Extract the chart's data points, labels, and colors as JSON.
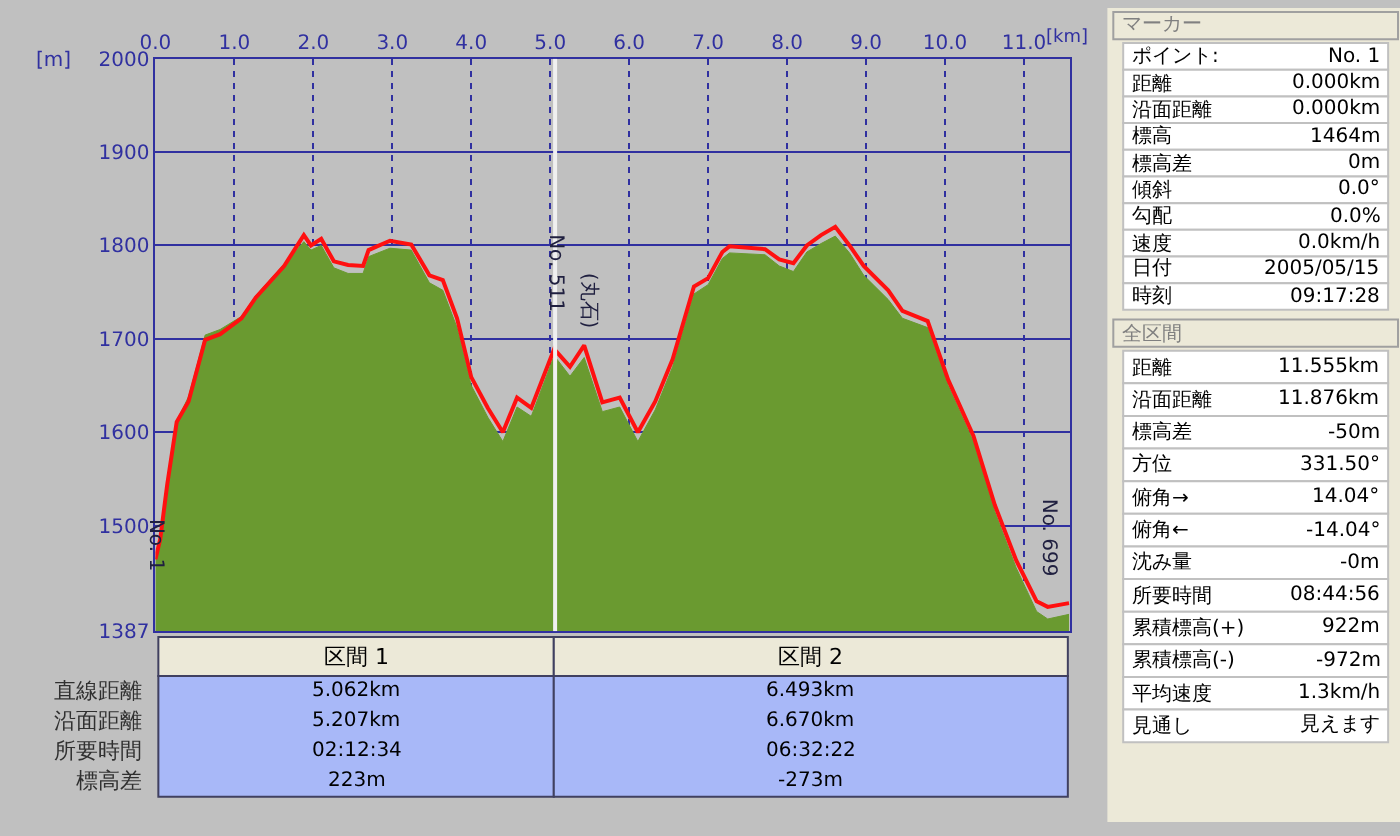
{
  "chart_data": [
    {
      "type": "area",
      "xlabel": "[km]",
      "ylabel": "[m]",
      "xlim": [
        0,
        11.58
      ],
      "ylim": [
        1387,
        2000
      ],
      "xticks": [
        {
          "value": 0,
          "label": "0.0"
        },
        {
          "value": 1,
          "label": "1.0"
        },
        {
          "value": 2,
          "label": "2.0"
        },
        {
          "value": 3,
          "label": "3.0"
        },
        {
          "value": 4,
          "label": "4.0"
        },
        {
          "value": 5,
          "label": "5.0"
        },
        {
          "value": 6,
          "label": "6.0"
        },
        {
          "value": 7,
          "label": "7.0"
        },
        {
          "value": 8,
          "label": "8.0"
        },
        {
          "value": 9,
          "label": "9.0"
        },
        {
          "value": 10,
          "label": "10.0"
        },
        {
          "value": 11,
          "label": "11.0"
        }
      ],
      "yticks": [
        1387,
        1500,
        1600,
        1700,
        1800,
        1900,
        2000
      ],
      "grid": true,
      "x": [
        0,
        0.06,
        0.15,
        0.27,
        0.42,
        0.63,
        0.82,
        1.09,
        1.27,
        1.63,
        1.88,
        1.97,
        2.1,
        2.26,
        2.44,
        2.63,
        2.7,
        2.97,
        3.24,
        3.47,
        3.64,
        3.82,
        4.0,
        4.21,
        4.4,
        4.58,
        4.76,
        5.05,
        5.25,
        5.43,
        5.66,
        5.88,
        6.11,
        6.33,
        6.55,
        6.82,
        7.0,
        7.18,
        7.27,
        7.72,
        7.9,
        8.08,
        8.25,
        8.43,
        8.61,
        8.79,
        8.97,
        9.28,
        9.46,
        9.78,
        10.04,
        10.36,
        10.63,
        10.9,
        11.16,
        11.3,
        11.57
      ],
      "series": [
        {
          "type": "area",
          "color": "#6a9a30",
          "values": [
            1464,
            1480,
            1540,
            1612,
            1638,
            1704,
            1710,
            1724,
            1746,
            1780,
            1804,
            1795,
            1800,
            1776,
            1770,
            1770,
            1788,
            1797,
            1795,
            1760,
            1752,
            1712,
            1650,
            1616,
            1590,
            1627,
            1617,
            1682,
            1660,
            1680,
            1622,
            1627,
            1590,
            1624,
            1670,
            1748,
            1758,
            1786,
            1792,
            1790,
            1778,
            1772,
            1793,
            1802,
            1810,
            1792,
            1768,
            1742,
            1722,
            1712,
            1650,
            1590,
            1515,
            1455,
            1408,
            1400,
            1405
          ]
        },
        {
          "type": "line",
          "color": "#ff1010",
          "values": [
            1464,
            1485,
            1544,
            1611,
            1633,
            1699,
            1705,
            1722,
            1744,
            1778,
            1811,
            1800,
            1807,
            1783,
            1779,
            1778,
            1795,
            1805,
            1801,
            1768,
            1763,
            1722,
            1659,
            1626,
            1600,
            1637,
            1626,
            1689,
            1670,
            1693,
            1632,
            1637,
            1600,
            1633,
            1678,
            1756,
            1765,
            1793,
            1799,
            1796,
            1785,
            1781,
            1800,
            1811,
            1820,
            1800,
            1778,
            1752,
            1730,
            1719,
            1656,
            1596,
            1522,
            1463,
            1419,
            1413,
            1417
          ]
        }
      ],
      "ref_lines": [
        {
          "axis": "x",
          "value": 5.062,
          "label": "No. 511",
          "color": "#f0f0f0"
        }
      ],
      "annotations": [
        {
          "text": "No. 1",
          "x": 0,
          "y": 1480
        },
        "(丸石)",
        "No. 699"
      ]
    },
    {
      "type": "other",
      "categories": [
        "区間 1",
        "区間 2"
      ],
      "y_categories": [
        "直線距離",
        "沿面距離",
        "所要時間",
        "標高差"
      ],
      "cell_labels": [
        [
          "5.062km",
          "6.493km"
        ],
        [
          "5.207km",
          "6.670km"
        ],
        [
          "02:12:34",
          "06:32:22"
        ],
        [
          "223m",
          "-273m"
        ]
      ]
    },
    {
      "type": "other",
      "title": "マーカー",
      "y_categories": [
        "ポイント:",
        "距離",
        "沿面距離",
        "標高",
        "標高差",
        "傾斜",
        "勾配",
        "速度",
        "日付",
        "時刻"
      ],
      "cell_labels": [
        [
          "No. 1"
        ],
        [
          "0.000km"
        ],
        [
          "0.000km"
        ],
        [
          "1464m"
        ],
        [
          "0m"
        ],
        [
          "0.0°"
        ],
        [
          "0.0%"
        ],
        [
          "0.0km/h"
        ],
        [
          "2005/05/15"
        ],
        [
          "09:17:28"
        ]
      ]
    },
    {
      "type": "other",
      "title": "全区間",
      "y_categories": [
        "距離",
        "沿面距離",
        "標高差",
        "方位",
        "俯角→",
        "俯角←",
        "沈み量",
        "所要時間",
        "累積標高(+)",
        "累積標高(-)",
        "平均速度",
        "見通し"
      ],
      "cell_labels": [
        [
          "11.555km"
        ],
        [
          "11.876km"
        ],
        [
          "-50m"
        ],
        [
          "331.50°"
        ],
        [
          "14.04°"
        ],
        [
          "-14.04°"
        ],
        [
          "-0m"
        ],
        [
          "08:44:56"
        ],
        [
          "922m"
        ],
        [
          "-972m"
        ],
        [
          "1.3km/h"
        ],
        [
          "見えます"
        ]
      ]
    }
  ]
}
